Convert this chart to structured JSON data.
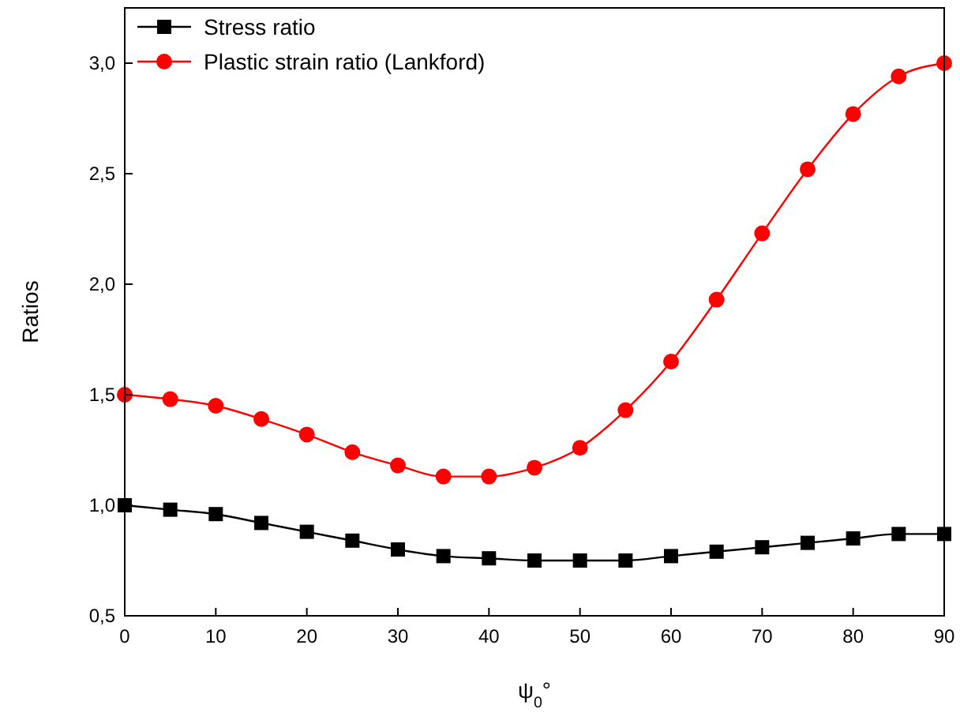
{
  "chart_data": {
    "type": "line",
    "xlabel": "ψ$_{0}$°",
    "ylabel": "Ratios",
    "x": [
      0,
      5,
      10,
      15,
      20,
      25,
      30,
      35,
      40,
      45,
      50,
      55,
      60,
      65,
      70,
      75,
      80,
      85,
      90
    ],
    "series": [
      {
        "name": "Stress ratio",
        "color": "#000000",
        "marker": "square",
        "values": [
          1.0,
          0.98,
          0.96,
          0.92,
          0.88,
          0.84,
          0.8,
          0.77,
          0.76,
          0.75,
          0.75,
          0.75,
          0.77,
          0.79,
          0.81,
          0.83,
          0.85,
          0.87,
          0.87
        ]
      },
      {
        "name": "Plastic strain ratio (Lankford)",
        "color": "#ff0000",
        "marker": "circle",
        "values": [
          1.5,
          1.48,
          1.45,
          1.39,
          1.32,
          1.24,
          1.18,
          1.13,
          1.13,
          1.17,
          1.26,
          1.43,
          1.65,
          1.93,
          2.23,
          2.52,
          2.77,
          2.94,
          3.0
        ]
      }
    ],
    "xlim": [
      0,
      90
    ],
    "xticks": [
      0,
      10,
      20,
      30,
      40,
      50,
      60,
      70,
      80,
      90
    ],
    "ylim": [
      0.5,
      3.25
    ],
    "yticks": [
      {
        "value": 0.5,
        "label": "0,5"
      },
      {
        "value": 1,
        "label": "1,0"
      },
      {
        "value": 1.5,
        "label": "1,5"
      },
      {
        "value": 2,
        "label": "2,0"
      },
      {
        "value": 2.5,
        "label": "2,5"
      },
      {
        "value": 3,
        "label": "3,0"
      }
    ],
    "legend": "top left",
    "grid": false,
    "line_style": "solid"
  }
}
